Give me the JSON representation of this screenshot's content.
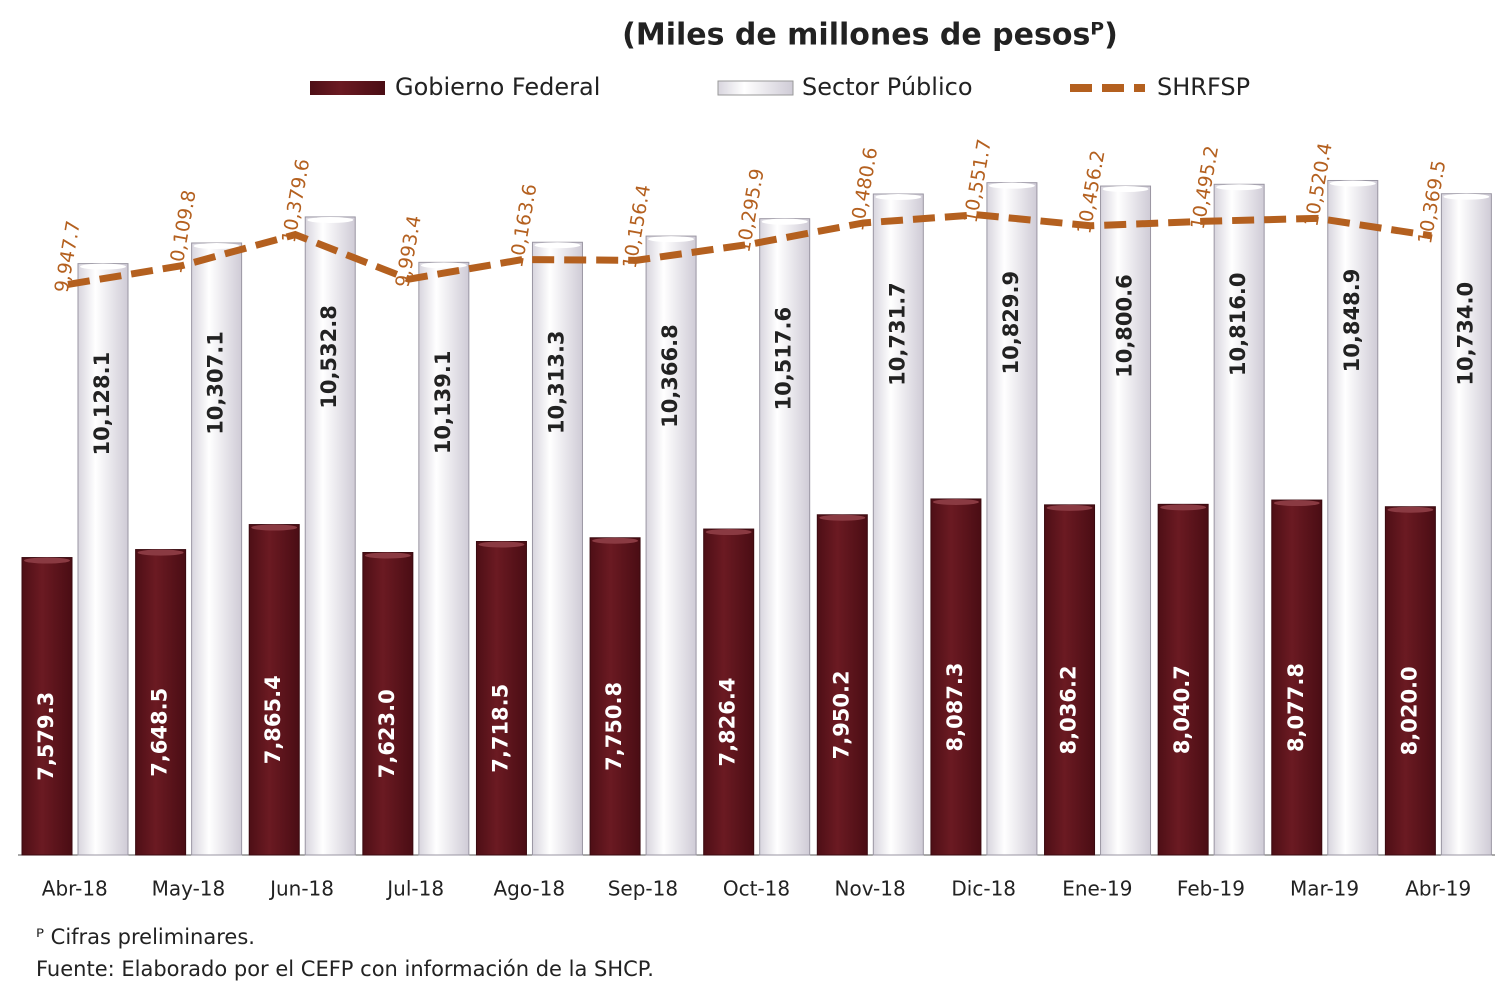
{
  "chart_data": {
    "type": "bar",
    "title": "(Miles de millones de pesosᴾ)",
    "categories": [
      "Abr-18",
      "May-18",
      "Jun-18",
      "Jul-18",
      "Ago-18",
      "Sep-18",
      "Oct-18",
      "Nov-18",
      "Dic-18",
      "Ene-19",
      "Feb-19",
      "Mar-19",
      "Abr-19"
    ],
    "series": [
      {
        "name": "Gobierno Federal",
        "color": "#6b1a22",
        "type": "bar",
        "values": [
          7579.3,
          7648.5,
          7865.4,
          7623.0,
          7718.5,
          7750.8,
          7826.4,
          7950.2,
          8087.3,
          8036.2,
          8040.7,
          8077.8,
          8020.0
        ],
        "value_labels": [
          "7,579.3",
          "7,648.5",
          "7,865.4",
          "7,623.0",
          "7,718.5",
          "7,750.8",
          "7,826.4",
          "7,950.2",
          "8,087.3",
          "8,036.2",
          "8,040.7",
          "8,077.8",
          "8,020.0"
        ]
      },
      {
        "name": "Sector Público",
        "color": "#efedf3",
        "type": "bar",
        "values": [
          10128.1,
          10307.1,
          10532.8,
          10139.1,
          10313.3,
          10366.8,
          10517.6,
          10731.7,
          10829.9,
          10800.6,
          10816.0,
          10848.9,
          10734.0
        ],
        "value_labels": [
          "10,128.1",
          "10,307.1",
          "10,532.8",
          "10,139.1",
          "10,313.3",
          "10,366.8",
          "10,517.6",
          "10,731.7",
          "10,829.9",
          "10,800.6",
          "10,816.0",
          "10,848.9",
          "10,734.0"
        ]
      },
      {
        "name": "SHRFSP",
        "color": "#b4601f",
        "type": "line",
        "values": [
          9947.7,
          10109.8,
          10379.6,
          9993.4,
          10163.6,
          10156.4,
          10295.9,
          10480.6,
          10551.7,
          10456.2,
          10495.2,
          10520.4,
          10369.5
        ],
        "value_labels": [
          "9,947.7",
          "10,109.8",
          "10,379.6",
          "9,993.4",
          "10,163.6",
          "10,156.4",
          "10,295.9",
          "10,480.6",
          "10,551.7",
          "10,456.2",
          "10,495.2",
          "10,520.4",
          "10,369.5"
        ]
      }
    ],
    "ylim": [
      5000,
      11200
    ],
    "footnotes": [
      "ᴾ Cifras preliminares.",
      "Fuente: Elaborado por el CEFP con información de la SHCP."
    ]
  }
}
